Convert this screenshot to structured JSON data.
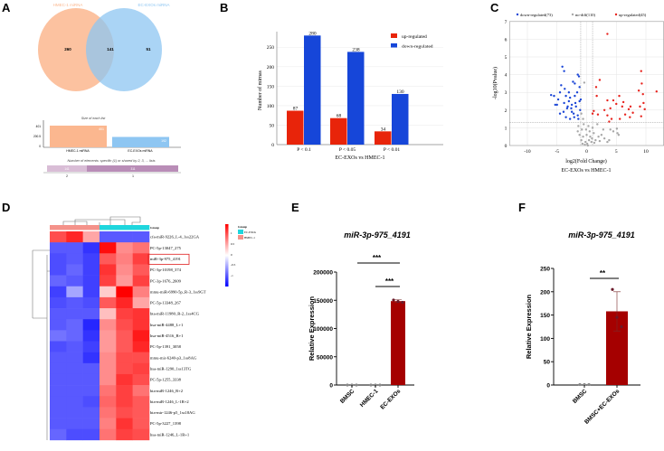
{
  "panels": {
    "a": "A",
    "b": "B",
    "c": "C",
    "d": "D",
    "e": "E",
    "f": "F"
  },
  "chart_data": [
    {
      "panel": "A",
      "type": "venn",
      "sets": [
        {
          "name": "HMEC-1 miRNA",
          "color": "#fbb78f"
        },
        {
          "name": "EC-EXOs miRNA",
          "color": "#8ec6f2"
        }
      ],
      "regions": {
        "only_a": 260,
        "both": 141,
        "only_b": 51
      },
      "size_chart": {
        "title": "Size of each list",
        "categories": [
          "HMEC-1 miRNA",
          "EC-EXOs miRNA"
        ],
        "values": [
          401,
          192
        ],
        "yticks": [
          "0",
          "200.5",
          "401"
        ]
      },
      "shared_chart": {
        "title": "Number of elements: specific (1) or shared by 2, 3, ... lists",
        "values": [
          141,
          311
        ],
        "labels": [
          "2",
          "1"
        ]
      }
    },
    {
      "panel": "B",
      "type": "bar",
      "categories": [
        "P < 0.1",
        "P < 0.05",
        "P < 0.01"
      ],
      "series": [
        {
          "name": "up-regulated",
          "color": "#e8240a",
          "values": [
            87,
            68,
            34
          ]
        },
        {
          "name": "down-regulated",
          "color": "#1646d9",
          "values": [
            280,
            238,
            130
          ]
        }
      ],
      "xlabel": "EC-EXOs vs HMEC-1",
      "ylabel": "Number of mirnas",
      "ylim": [
        0,
        290
      ],
      "yticks": [
        0,
        50,
        100,
        150,
        200,
        250
      ],
      "legend": "top-right"
    },
    {
      "panel": "C",
      "type": "scatter",
      "xlabel": "log2(Fold Change)",
      "xlabel2": "EC-EXOs vs HMEC-1",
      "ylabel": "-log10(Pvalue)",
      "xlim": [
        -13,
        13
      ],
      "ylim": [
        0,
        7
      ],
      "xticks": [
        -10,
        -5,
        0,
        5,
        10
      ],
      "yticks": [
        0,
        1,
        2,
        3,
        4,
        5,
        6,
        7
      ],
      "thresholds": {
        "fc": [
          -1,
          1
        ],
        "p": 1.3
      },
      "series": [
        {
          "name": "down-regulated(73)",
          "color": "#1a45d6",
          "points": [
            [
              -6,
              2.85
            ],
            [
              -5.5,
              2.8
            ],
            [
              -5.3,
              2.3
            ],
            [
              -5,
              2.3
            ],
            [
              -4.5,
              3.0
            ],
            [
              -4.3,
              3.4
            ],
            [
              -4.1,
              4.45
            ],
            [
              -3.8,
              4.2
            ],
            [
              -3.7,
              3.2
            ],
            [
              -3.5,
              2.8
            ],
            [
              -3.3,
              2.1
            ],
            [
              -3,
              2.5
            ],
            [
              -2.8,
              2.7
            ],
            [
              -2.5,
              2.3
            ],
            [
              -2.3,
              3.6
            ],
            [
              -2,
              3.5
            ],
            [
              -1.8,
              2.2
            ],
            [
              -1.5,
              4.0
            ],
            [
              -1.3,
              3.9
            ],
            [
              -1.2,
              3.3
            ],
            [
              -1,
              2.6
            ],
            [
              -1.1,
              2.0
            ],
            [
              -2.2,
              1.8
            ],
            [
              -3.5,
              1.6
            ],
            [
              -4.5,
              1.8
            ],
            [
              -2.8,
              1.5
            ],
            [
              -1.5,
              1.7
            ],
            [
              -2,
              2.8
            ],
            [
              -3,
              3.0
            ],
            [
              -1.4,
              1.5
            ],
            [
              -2.5,
              1.9
            ],
            [
              -3.8,
              2.4
            ],
            [
              -4.8,
              2.6
            ],
            [
              -3.2,
              2.2
            ],
            [
              -2.6,
              2.1
            ],
            [
              -1.9,
              2.4
            ],
            [
              -1.2,
              2.5
            ],
            [
              -1.6,
              3.0
            ],
            [
              -2.1,
              1.6
            ],
            [
              -3.9,
              1.9
            ]
          ]
        },
        {
          "name": "no-diff(110)",
          "color": "#a8a8a8",
          "points": [
            [
              -0.5,
              1.2
            ],
            [
              0.3,
              1.1
            ],
            [
              -0.8,
              0.9
            ],
            [
              0.5,
              0.8
            ],
            [
              1.2,
              0.7
            ],
            [
              2.0,
              0.5
            ],
            [
              2.5,
              0.6
            ],
            [
              3.0,
              0.4
            ],
            [
              3.8,
              0.3
            ],
            [
              4.5,
              0.8
            ],
            [
              5.1,
              0.95
            ],
            [
              5.2,
              0.7
            ],
            [
              5.4,
              0.6
            ],
            [
              4.0,
              0.9
            ],
            [
              -0.2,
              0.2
            ],
            [
              0.1,
              0.1
            ],
            [
              0.4,
              0.3
            ],
            [
              -0.6,
              0.5
            ],
            [
              -1.2,
              0.6
            ],
            [
              -1.5,
              0.8
            ],
            [
              0.8,
              0.2
            ],
            [
              1.5,
              0.3
            ],
            [
              0.2,
              0.0
            ],
            [
              -0.3,
              0.05
            ],
            [
              0.6,
              0.5
            ],
            [
              -0.9,
              0.3
            ],
            [
              1.0,
              1.0
            ],
            [
              1.8,
              1.2
            ],
            [
              -0.4,
              3.55
            ],
            [
              -0.6,
              1.5
            ],
            [
              -0.9,
              1.8
            ],
            [
              -1.4,
              1.1
            ],
            [
              2.8,
              0.9
            ],
            [
              3.5,
              0.2
            ],
            [
              0.0,
              0.6
            ],
            [
              -0.1,
              0.9
            ],
            [
              0.9,
              0.4
            ],
            [
              1.3,
              0.15
            ],
            [
              2.2,
              0.25
            ],
            [
              -0.7,
              0.1
            ]
          ]
        },
        {
          "name": "up-regulated(45)",
          "color": "#e8241e",
          "points": [
            [
              3.5,
              6.3
            ],
            [
              9.2,
              4.2
            ],
            [
              9.3,
              3.5
            ],
            [
              11.8,
              3.05
            ],
            [
              8.8,
              3.1
            ],
            [
              9.5,
              2.9
            ],
            [
              2.2,
              3.7
            ],
            [
              1.6,
              3.3
            ],
            [
              1.7,
              2.8
            ],
            [
              3.5,
              2.55
            ],
            [
              4.5,
              2.55
            ],
            [
              5.5,
              2.8
            ],
            [
              6.2,
              2.45
            ],
            [
              5,
              2.35
            ],
            [
              6,
              2.2
            ],
            [
              7.4,
              2.2
            ],
            [
              9.6,
              2.4
            ],
            [
              9,
              2.2
            ],
            [
              9.8,
              2.05
            ],
            [
              7.1,
              2.05
            ],
            [
              3,
              2.0
            ],
            [
              4,
              2.1
            ],
            [
              1.2,
              1.95
            ],
            [
              1,
              1.8
            ],
            [
              1.9,
              1.75
            ],
            [
              3.5,
              1.7
            ],
            [
              4.2,
              1.5
            ],
            [
              3.8,
              1.35
            ],
            [
              5.6,
              1.5
            ],
            [
              6.5,
              1.75
            ],
            [
              7.3,
              1.6
            ],
            [
              7.8,
              1.85
            ],
            [
              9.2,
              1.65
            ]
          ]
        }
      ]
    },
    {
      "panel": "D",
      "type": "heatmap",
      "legend_title": "Group",
      "groups": [
        {
          "name": "EC-EXOs",
          "color": "#1fd6dd"
        },
        {
          "name": "HMEC-1",
          "color": "#f4928a"
        }
      ],
      "column_groups": [
        "HMEC-1",
        "HMEC-1",
        "HMEC-1",
        "EC-EXOs",
        "EC-EXOs",
        "EC-EXOs"
      ],
      "scale_ticks": [
        "1",
        "0.5",
        "0",
        "-0.5",
        "-1"
      ],
      "highlight_row": 2,
      "rows": [
        "cfa-miR-9226_L-4_1ss22GA",
        "PC-5p-13047_275",
        "miR-3p-975_4191",
        "PC-3p-10198_374",
        "PC-3p-1676_2609",
        "mmu-miR-6990-5p_R-3_1ss9GT",
        "PC-5p-13348_267",
        "bta-miR-11980_R-2_1ss4CG",
        "hsa-miR-4488_L+1",
        "hsa-miR-4516_R+1",
        "PC-5p-1391_3058",
        "mmu-mir-6240-p3_1ss8AG",
        "hsa-miR-1290_1ss13TG",
        "PC-5p-1255_3338",
        "bta-miR-1246_R+2",
        "bta-miR-1246_L-1R+2",
        "bta-mir-1246-p5_1ss18AG",
        "PC-5p-3227_1398",
        "hsa-miR-1246_L-1R+1"
      ],
      "values": [
        [
          0.7,
          0.85,
          0.35,
          -0.65,
          -0.65,
          -0.65
        ],
        [
          -0.65,
          -0.65,
          -0.8,
          0.95,
          0.45,
          0.55
        ],
        [
          -0.7,
          -0.65,
          -0.75,
          0.65,
          0.5,
          0.75
        ],
        [
          -0.7,
          -0.6,
          -0.75,
          0.8,
          0.45,
          0.65
        ],
        [
          -0.6,
          -0.65,
          -0.75,
          0.75,
          0.4,
          0.75
        ],
        [
          -0.75,
          -0.35,
          -0.75,
          0.2,
          1.0,
          0.5
        ],
        [
          -0.7,
          -0.65,
          -0.7,
          0.65,
          0.85,
          0.35
        ],
        [
          -0.65,
          -0.65,
          -0.65,
          0.25,
          0.75,
          0.8
        ],
        [
          -0.65,
          -0.6,
          -0.85,
          0.45,
          0.7,
          0.8
        ],
        [
          -0.55,
          -0.6,
          -0.8,
          0.4,
          0.65,
          0.9
        ],
        [
          -0.7,
          -0.65,
          -0.75,
          0.4,
          0.65,
          0.85
        ],
        [
          -0.65,
          -0.65,
          -0.8,
          0.45,
          0.7,
          0.7
        ],
        [
          -0.65,
          -0.65,
          -0.65,
          0.45,
          0.7,
          0.75
        ],
        [
          -0.65,
          -0.65,
          -0.65,
          0.45,
          0.8,
          0.7
        ],
        [
          -0.65,
          -0.65,
          -0.65,
          0.55,
          0.75,
          0.55
        ],
        [
          -0.65,
          -0.65,
          -0.7,
          0.6,
          0.75,
          0.65
        ],
        [
          -0.65,
          -0.65,
          -0.65,
          0.55,
          0.7,
          0.65
        ],
        [
          -0.65,
          -0.65,
          -0.65,
          0.5,
          0.8,
          0.65
        ],
        [
          -0.6,
          -0.7,
          -0.7,
          0.55,
          0.75,
          0.7
        ]
      ]
    },
    {
      "panel": "E",
      "type": "bar",
      "title": "miR-3p-975_4191",
      "ylabel": "Relative Expression",
      "categories": [
        "BMSC",
        "HMEC-1",
        "EC-EXOs"
      ],
      "values": [
        1,
        1,
        148500
      ],
      "errors": [
        0,
        0,
        2500
      ],
      "points": [
        [
          1,
          1,
          1
        ],
        [
          1,
          1,
          1
        ],
        [
          150500,
          148000,
          146500
        ]
      ],
      "colors": [
        "#9a9a9a",
        "#555555",
        "#a50000"
      ],
      "ylim": [
        0,
        200000
      ],
      "yticks": [
        "0",
        "50000",
        "100000",
        "150000",
        "200000"
      ],
      "significance": [
        {
          "from": 0,
          "to": 2,
          "label": "***"
        },
        {
          "from": 1,
          "to": 2,
          "label": "***"
        }
      ]
    },
    {
      "panel": "F",
      "type": "bar",
      "title": "miR-3p-975_4191",
      "ylabel": "Relative Expression",
      "categories": [
        "BMSC",
        "BMSC+EC-EXOs"
      ],
      "values": [
        1,
        158
      ],
      "errors": [
        0,
        42
      ],
      "points": [
        [
          1,
          1,
          1
        ],
        [
          205,
          145,
          125
        ]
      ],
      "colors": [
        "#9a9a9a",
        "#a50000"
      ],
      "ylim": [
        0,
        250
      ],
      "yticks": [
        "0",
        "50",
        "100",
        "150",
        "200",
        "250"
      ],
      "significance": [
        {
          "from": 0,
          "to": 1,
          "label": "**"
        }
      ]
    }
  ]
}
